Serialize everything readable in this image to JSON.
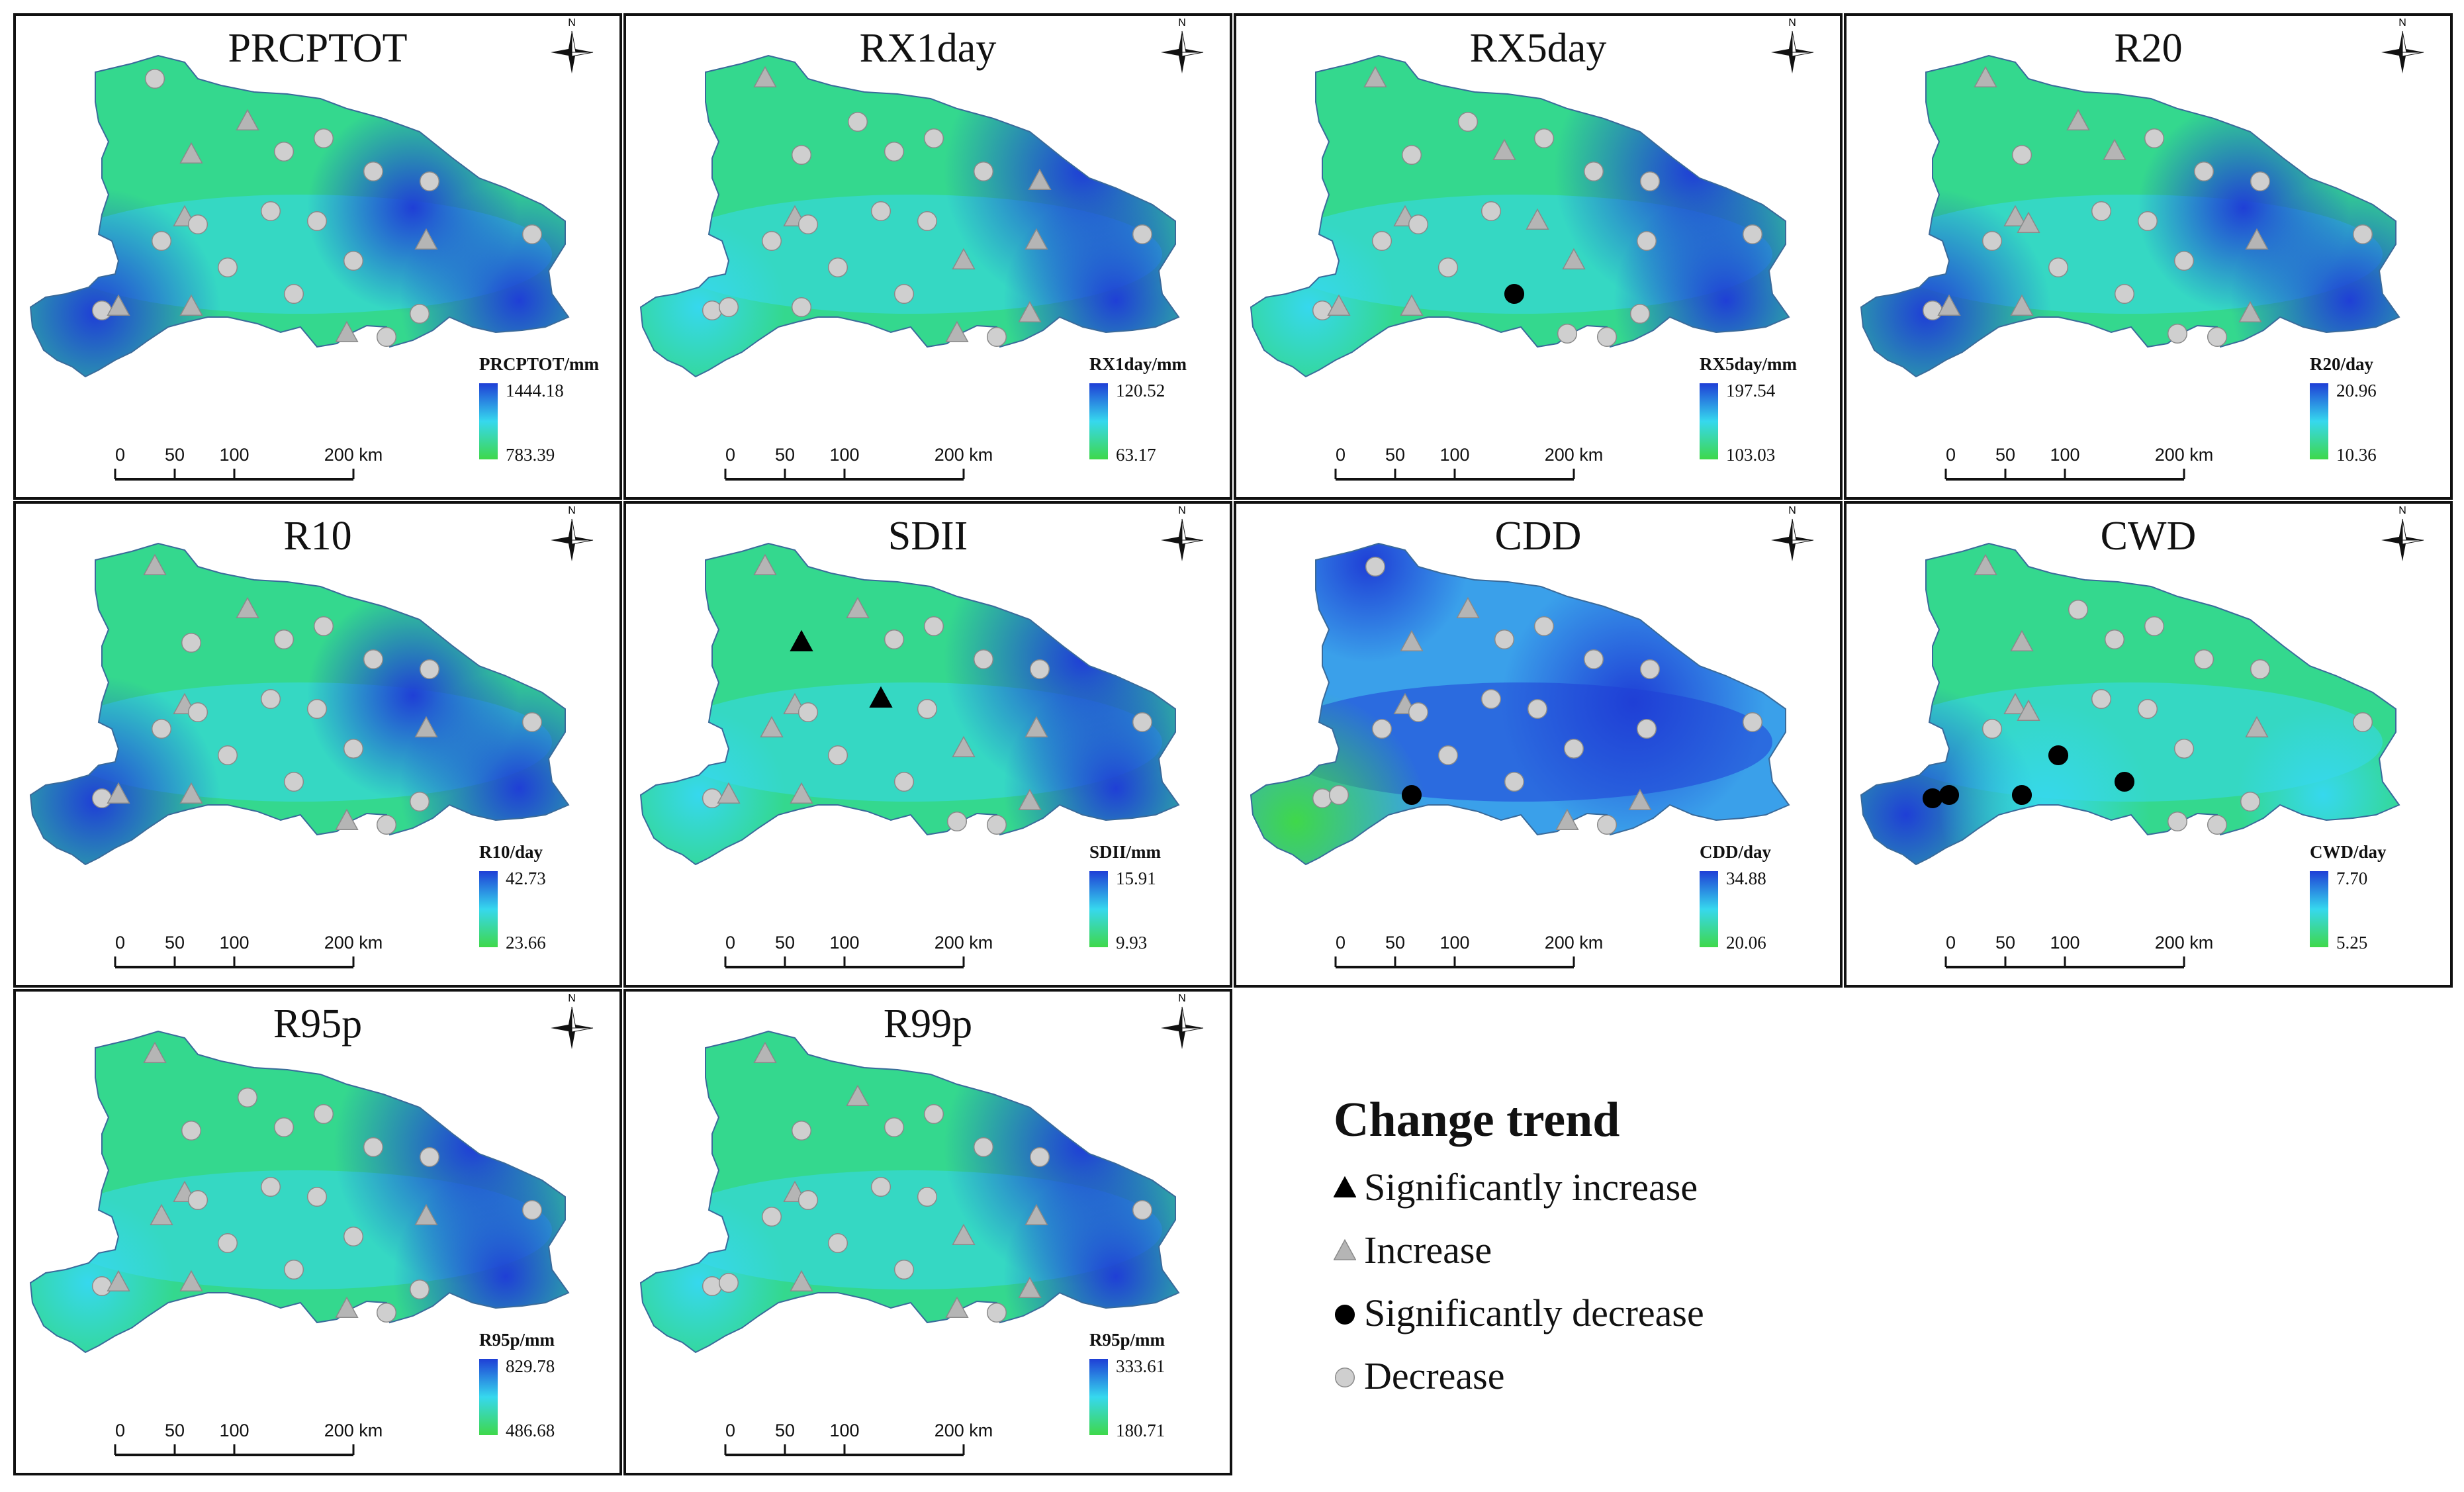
{
  "panels": [
    {
      "id": "prcptot",
      "title": "PRCPTOT",
      "unit": "PRCPTOT/mm",
      "max": "1444.18",
      "min": "783.39",
      "pattern": "wet_south_east",
      "stations": [
        "D",
        "I",
        "I",
        "D",
        "D",
        "D",
        "D",
        "I",
        "D",
        "D",
        "D",
        "D",
        "I",
        "D",
        "D",
        "D",
        "D",
        "D",
        "I",
        "I",
        "I",
        "D",
        "D"
      ]
    },
    {
      "id": "rx1day",
      "title": "RX1day",
      "unit": "RX1day/mm",
      "max": "120.52",
      "min": "63.17",
      "pattern": "wet_east",
      "stations": [
        "I",
        "D",
        "D",
        "D",
        "D",
        "D",
        "I",
        "I",
        "D",
        "D",
        "D",
        "D",
        "I",
        "D",
        "I",
        "D",
        "D",
        "D",
        "D",
        "D",
        "I",
        "D",
        "I"
      ]
    },
    {
      "id": "rx5day",
      "title": "RX5day",
      "unit": "RX5day/mm",
      "max": "197.54",
      "min": "103.03",
      "pattern": "wet_east",
      "stations": [
        "I",
        "D",
        "D",
        "I",
        "D",
        "D",
        "D",
        "I",
        "D",
        "D",
        "D",
        "I",
        "D",
        "D",
        "I",
        "D",
        "SD",
        "D",
        "I",
        "I",
        "D",
        "D",
        "D"
      ]
    },
    {
      "id": "r20",
      "title": "R20",
      "unit": "R20/day",
      "max": "20.96",
      "min": "10.36",
      "pattern": "wet_south_east",
      "stations": [
        "I",
        "D",
        "I",
        "I",
        "D",
        "D",
        "D",
        "I",
        "D",
        "I",
        "D",
        "D",
        "I",
        "D",
        "D",
        "D",
        "D",
        "D",
        "I",
        "I",
        "D",
        "D",
        "I"
      ]
    },
    {
      "id": "r10",
      "title": "R10",
      "unit": "R10/day",
      "max": "42.73",
      "min": "23.66",
      "pattern": "wet_south_east",
      "stations": [
        "I",
        "D",
        "I",
        "D",
        "D",
        "D",
        "D",
        "I",
        "D",
        "D",
        "D",
        "D",
        "I",
        "D",
        "D",
        "D",
        "D",
        "D",
        "I",
        "I",
        "I",
        "D",
        "D"
      ]
    },
    {
      "id": "sdii",
      "title": "SDII",
      "unit": "SDII/mm",
      "max": "15.91",
      "min": "9.93",
      "pattern": "wet_east",
      "stations": [
        "I",
        "SI",
        "I",
        "D",
        "D",
        "D",
        "D",
        "I",
        "I",
        "D",
        "SI",
        "D",
        "I",
        "D",
        "I",
        "D",
        "D",
        "D",
        "I",
        "I",
        "D",
        "D",
        "I"
      ]
    },
    {
      "id": "cdd",
      "title": "CDD",
      "unit": "CDD/day",
      "max": "34.88",
      "min": "20.06",
      "pattern": "dry_southwest",
      "stations": [
        "D",
        "I",
        "I",
        "D",
        "D",
        "D",
        "D",
        "I",
        "D",
        "D",
        "D",
        "D",
        "D",
        "D",
        "D",
        "D",
        "D",
        "D",
        "D",
        "SD",
        "I",
        "D",
        "I"
      ]
    },
    {
      "id": "cwd",
      "title": "CWD",
      "unit": "CWD/day",
      "max": "7.70",
      "min": "5.25",
      "pattern": "wet_southwest",
      "stations": [
        "I",
        "I",
        "D",
        "D",
        "D",
        "D",
        "D",
        "I",
        "D",
        "I",
        "D",
        "D",
        "I",
        "D",
        "D",
        "SD",
        "SD",
        "SD",
        "SD",
        "SD",
        "D",
        "D",
        "D"
      ]
    },
    {
      "id": "r95p",
      "title": "R95p",
      "unit": "R95p/mm",
      "max": "829.78",
      "min": "486.68",
      "pattern": "wet_east",
      "stations": [
        "I",
        "D",
        "D",
        "D",
        "D",
        "D",
        "D",
        "I",
        "I",
        "D",
        "D",
        "D",
        "I",
        "D",
        "D",
        "D",
        "D",
        "D",
        "I",
        "I",
        "I",
        "D",
        "D"
      ]
    },
    {
      "id": "r99p",
      "title": "R99p",
      "unit": "R95p/mm",
      "max": "333.61",
      "min": "180.71",
      "pattern": "wet_east",
      "stations": [
        "I",
        "D",
        "I",
        "D",
        "D",
        "D",
        "D",
        "I",
        "D",
        "D",
        "D",
        "D",
        "I",
        "D",
        "I",
        "D",
        "D",
        "D",
        "D",
        "I",
        "I",
        "D",
        "I"
      ]
    }
  ],
  "scale_labels": [
    "0",
    "50",
    "100",
    "200 km"
  ],
  "north_label": "N",
  "legend": {
    "title": "Change trend",
    "items": [
      {
        "key": "SI",
        "label": "Significantly increase"
      },
      {
        "key": "I",
        "label": "Increase"
      },
      {
        "key": "SD",
        "label": "Significantly decrease"
      },
      {
        "key": "D",
        "label": "Decrease"
      }
    ]
  },
  "colors": {
    "ramp_high": "#1f3fd6",
    "ramp_mid": "#36d8ee",
    "ramp_low": "#3fd84a",
    "increase": "#b5b5b5",
    "decrease": "#cfcfcf",
    "significant": "#000000"
  }
}
